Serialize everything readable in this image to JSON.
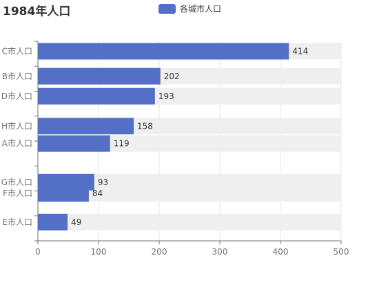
{
  "chart_data": {
    "type": "bar",
    "orientation": "horizontal",
    "title": "1984年人口",
    "legend": {
      "position": "top-center"
    },
    "series": [
      {
        "name": "各城市人口",
        "color": "#5470c6",
        "points": [
          {
            "category": "C市人口",
            "value": 414,
            "y": 8.6
          },
          {
            "category": "B市人口",
            "value": 202,
            "y": 7.6
          },
          {
            "category": "D市人口",
            "value": 193,
            "y": 6.8
          },
          {
            "category": "H市人口",
            "value": 158,
            "y": 5.6
          },
          {
            "category": "A市人口",
            "value": 119,
            "y": 4.9
          },
          {
            "category": "G市人口",
            "value": 93,
            "y": 3.35
          },
          {
            "category": "F市人口",
            "value": 84,
            "y": 2.9
          },
          {
            "category": "E市人口",
            "value": 49,
            "y": 1.75
          }
        ]
      }
    ],
    "xlim": [
      0,
      500
    ],
    "x_ticks": [
      0,
      100,
      200,
      300,
      400,
      500
    ],
    "ylim": [
      1,
      9
    ],
    "background_bar_color": "#efefef",
    "grid": {
      "vertical_lines": true,
      "color": "#e0e6f1"
    }
  }
}
